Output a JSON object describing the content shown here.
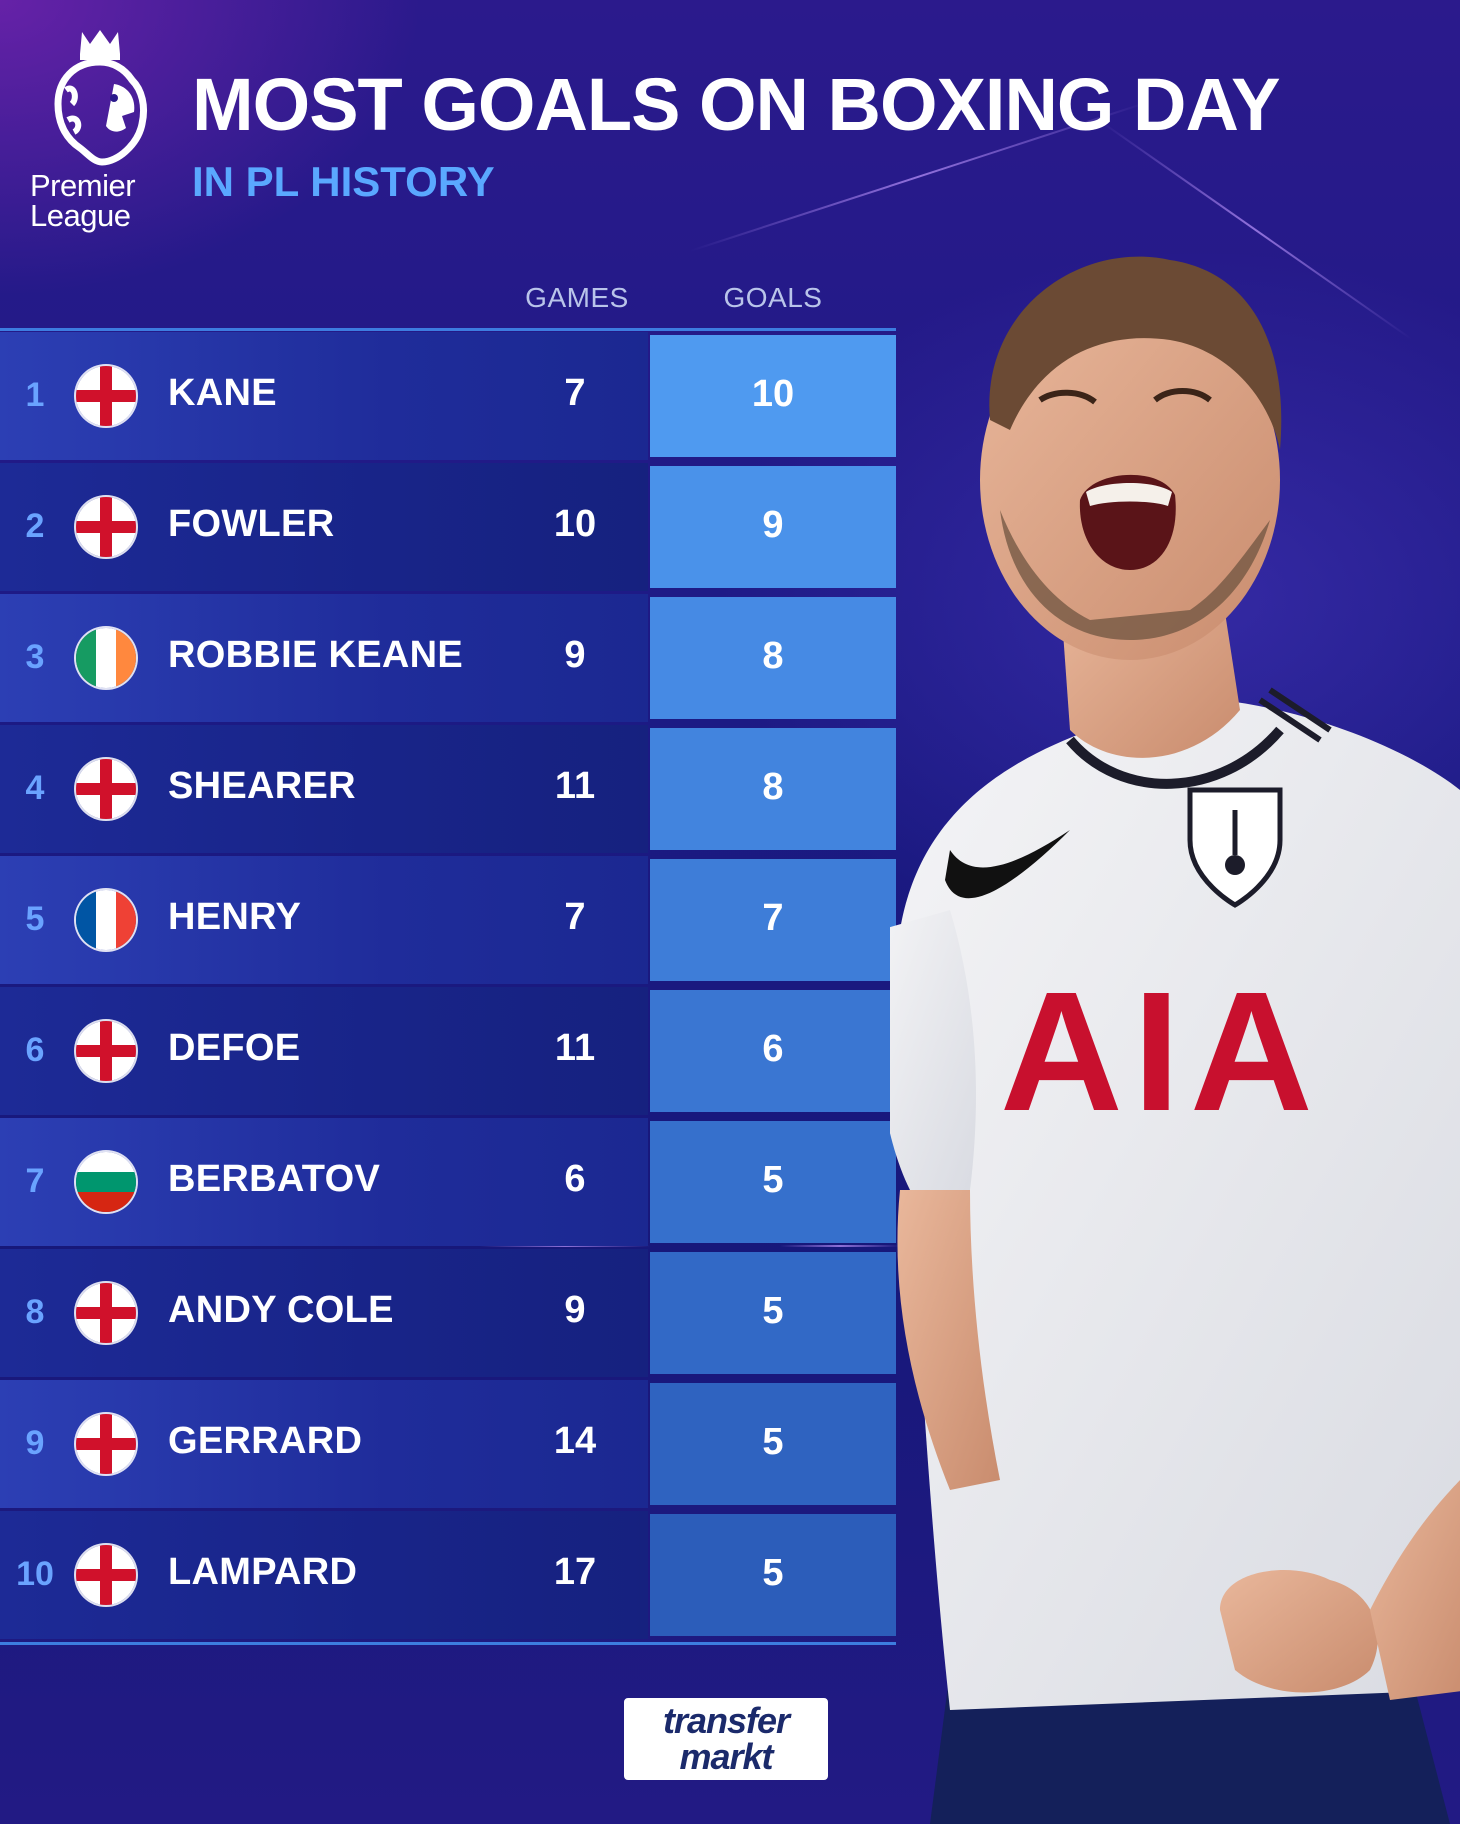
{
  "header": {
    "logo_line1": "Premier",
    "logo_line2": "League",
    "title": "MOST GOALS ON BOXING DAY",
    "subtitle": "IN PL HISTORY"
  },
  "columns": {
    "games": "GAMES",
    "goals": "GOALS"
  },
  "rows": [
    {
      "rank": "1",
      "flag": "england-flag",
      "name": "KANE",
      "games": "7",
      "goals": "10",
      "goals_color": "#4f9af0"
    },
    {
      "rank": "2",
      "flag": "england-flag",
      "name": "FOWLER",
      "games": "10",
      "goals": "9",
      "goals_color": "#4a92ea"
    },
    {
      "rank": "3",
      "flag": "ireland-flag",
      "name": "ROBBIE KEANE",
      "games": "9",
      "goals": "8",
      "goals_color": "#468ae4"
    },
    {
      "rank": "4",
      "flag": "england-flag",
      "name": "SHEARER",
      "games": "11",
      "goals": "8",
      "goals_color": "#4284de"
    },
    {
      "rank": "5",
      "flag": "france-flag",
      "name": "HENRY",
      "games": "7",
      "goals": "7",
      "goals_color": "#3e7dd8"
    },
    {
      "rank": "6",
      "flag": "england-flag",
      "name": "DEFOE",
      "games": "11",
      "goals": "6",
      "goals_color": "#3a76d2"
    },
    {
      "rank": "7",
      "flag": "bulgaria-flag",
      "name": "BERBATOV",
      "games": "6",
      "goals": "5",
      "goals_color": "#3670cc"
    },
    {
      "rank": "8",
      "flag": "england-flag",
      "name": "ANDY COLE",
      "games": "9",
      "goals": "5",
      "goals_color": "#3269c6"
    },
    {
      "rank": "9",
      "flag": "england-flag",
      "name": "GERRARD",
      "games": "14",
      "goals": "5",
      "goals_color": "#2f63c0"
    },
    {
      "rank": "10",
      "flag": "england-flag",
      "name": "LAMPARD",
      "games": "17",
      "goals": "5",
      "goals_color": "#2c5dba"
    }
  ],
  "footer": {
    "brand_line1": "transfer",
    "brand_line2": "markt"
  },
  "shirt": {
    "sponsor": "AIA"
  }
}
